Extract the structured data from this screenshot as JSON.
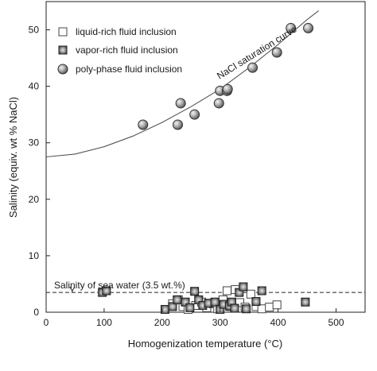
{
  "chart_data": {
    "type": "scatter",
    "title": "",
    "xlabel": "Homogenization temperature (°C)",
    "ylabel": "Salinity (equiv. wt % NaCl)",
    "xlim": [
      0,
      550
    ],
    "ylim": [
      0,
      55
    ],
    "x_ticks": [
      "0",
      "100",
      "200",
      "300",
      "400",
      "500"
    ],
    "y_ticks": [
      "0",
      "10",
      "20",
      "30",
      "40",
      "50"
    ],
    "x_tick_values": [
      0,
      100,
      200,
      300,
      400,
      500
    ],
    "y_tick_values": [
      0,
      10,
      20,
      30,
      40,
      50
    ],
    "grid": false,
    "legend_position": "top-left",
    "series": [
      {
        "name": "liquid-rich fluid inclusion",
        "marker": "open-square",
        "points": [
          [
            218,
            1.5
          ],
          [
            228,
            2.2
          ],
          [
            236,
            1.0
          ],
          [
            245,
            0.5
          ],
          [
            258,
            1.2
          ],
          [
            268,
            1.8
          ],
          [
            277,
            0.8
          ],
          [
            288,
            1.5
          ],
          [
            296,
            0.6
          ],
          [
            305,
            2.2
          ],
          [
            312,
            3.8
          ],
          [
            318,
            1.0
          ],
          [
            326,
            4.0
          ],
          [
            334,
            1.7
          ],
          [
            343,
            0.9
          ],
          [
            353,
            3.2
          ],
          [
            362,
            1.0
          ],
          [
            372,
            0.6
          ],
          [
            385,
            0.9
          ],
          [
            398,
            1.3
          ]
        ]
      },
      {
        "name": "vapor-rich fluid inclusion",
        "marker": "filled-square",
        "points": [
          [
            97,
            3.5
          ],
          [
            104,
            3.8
          ],
          [
            205,
            0.5
          ],
          [
            218,
            1.0
          ],
          [
            226,
            2.2
          ],
          [
            240,
            1.8
          ],
          [
            248,
            0.8
          ],
          [
            256,
            3.7
          ],
          [
            263,
            2.2
          ],
          [
            270,
            1.2
          ],
          [
            280,
            1.6
          ],
          [
            291,
            1.8
          ],
          [
            300,
            0.5
          ],
          [
            306,
            1.4
          ],
          [
            316,
            1.1
          ],
          [
            320,
            1.8
          ],
          [
            325,
            0.7
          ],
          [
            333,
            3.5
          ],
          [
            340,
            4.5
          ],
          [
            345,
            0.6
          ],
          [
            362,
            1.9
          ],
          [
            372,
            3.8
          ],
          [
            447,
            1.8
          ]
        ]
      },
      {
        "name": "poly-phase fluid inclusion",
        "marker": "circle",
        "points": [
          [
            167,
            33.2
          ],
          [
            227,
            33.2
          ],
          [
            232,
            37.0
          ],
          [
            256,
            35.0
          ],
          [
            298,
            37.0
          ],
          [
            300,
            39.2
          ],
          [
            312,
            39.2
          ],
          [
            313,
            39.5
          ],
          [
            356,
            43.3
          ],
          [
            398,
            46.0
          ],
          [
            422,
            50.3
          ],
          [
            452,
            50.3
          ]
        ]
      }
    ],
    "lines": [
      {
        "name": "NaCl saturation curve",
        "style": "solid",
        "points": [
          [
            0,
            27.5
          ],
          [
            50,
            28.0
          ],
          [
            100,
            29.3
          ],
          [
            150,
            31.2
          ],
          [
            200,
            33.6
          ],
          [
            250,
            36.4
          ],
          [
            300,
            39.5
          ],
          [
            350,
            43.3
          ],
          [
            400,
            47.4
          ],
          [
            450,
            51.8
          ],
          [
            470,
            53.4
          ]
        ]
      },
      {
        "name": "Salinity of sea water (3.5 wt.%)",
        "style": "dashed",
        "y": 3.5
      }
    ],
    "annotations": {
      "curve_label": "NaCl saturation curve",
      "sea_water_label": "Salinity of sea water (3.5 wt.%)"
    }
  }
}
